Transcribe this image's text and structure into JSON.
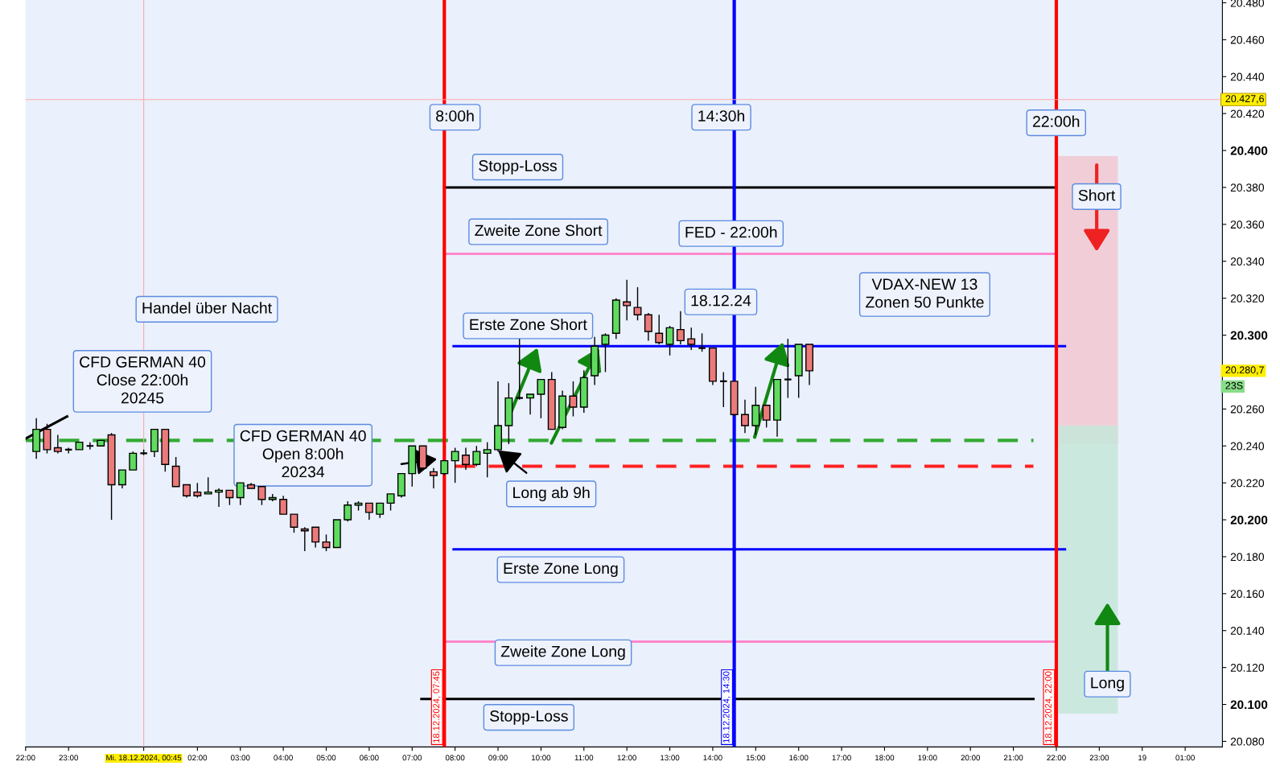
{
  "chart_data": {
    "type": "candlestick",
    "x": [
      "2024-12-17T22:15",
      "2024-12-17T22:30",
      "2024-12-17T22:45",
      "2024-12-17T23:00",
      "2024-12-17T23:15",
      "2024-12-17T23:30",
      "2024-12-17T23:45",
      "2024-12-18T00:00",
      "2024-12-18T00:15",
      "2024-12-18T00:30",
      "2024-12-18T00:45",
      "2024-12-18T01:00",
      "2024-12-18T01:15",
      "2024-12-18T01:30",
      "2024-12-18T01:45",
      "2024-12-18T02:00",
      "2024-12-18T02:15",
      "2024-12-18T02:30",
      "2024-12-18T02:45",
      "2024-12-18T03:00",
      "2024-12-18T03:15",
      "2024-12-18T03:30",
      "2024-12-18T03:45",
      "2024-12-18T04:00",
      "2024-12-18T04:15",
      "2024-12-18T04:30",
      "2024-12-18T04:45",
      "2024-12-18T05:00",
      "2024-12-18T05:15",
      "2024-12-18T05:30",
      "2024-12-18T05:45",
      "2024-12-18T06:00",
      "2024-12-18T06:15",
      "2024-12-18T06:30",
      "2024-12-18T06:45",
      "2024-12-18T07:00",
      "2024-12-18T07:15",
      "2024-12-18T07:30",
      "2024-12-18T07:45",
      "2024-12-18T08:00",
      "2024-12-18T08:15",
      "2024-12-18T08:30",
      "2024-12-18T08:45",
      "2024-12-18T09:00",
      "2024-12-18T09:15",
      "2024-12-18T09:30",
      "2024-12-18T09:45",
      "2024-12-18T10:00",
      "2024-12-18T10:15",
      "2024-12-18T10:30",
      "2024-12-18T10:45",
      "2024-12-18T11:00",
      "2024-12-18T11:15",
      "2024-12-18T11:30",
      "2024-12-18T11:45",
      "2024-12-18T12:00",
      "2024-12-18T12:15",
      "2024-12-18T12:30",
      "2024-12-18T12:45",
      "2024-12-18T13:00",
      "2024-12-18T13:15",
      "2024-12-18T13:30",
      "2024-12-18T13:45",
      "2024-12-18T14:00",
      "2024-12-18T14:15",
      "2024-12-18T14:30",
      "2024-12-18T14:45",
      "2024-12-18T15:00",
      "2024-12-18T15:15",
      "2024-12-18T15:30",
      "2024-12-18T15:45",
      "2024-12-18T16:00",
      "2024-12-18T16:15"
    ],
    "ohlc": [
      [
        20237,
        20255,
        20233,
        20249
      ],
      [
        20249,
        20252,
        20236,
        20238
      ],
      [
        20239,
        20246,
        20236,
        20237
      ],
      [
        20238,
        20239,
        20236,
        20238
      ],
      [
        20238,
        20242,
        20238,
        20242
      ],
      [
        20240,
        20242,
        20238,
        20240
      ],
      [
        20240,
        20243,
        20240,
        20243
      ],
      [
        20246,
        20247,
        20200,
        20219
      ],
      [
        20219,
        20227,
        20217,
        20227
      ],
      [
        20227,
        20237,
        20227,
        20236
      ],
      [
        20236,
        20238,
        20235,
        20236
      ],
      [
        20237,
        20249,
        20234,
        20249
      ],
      [
        20249,
        20249,
        20226,
        20230
      ],
      [
        20229,
        20234,
        20218,
        20218
      ],
      [
        20219,
        20219,
        20212,
        20213
      ],
      [
        20215,
        20220,
        20212,
        20213
      ],
      [
        20214,
        20223,
        20214,
        20215
      ],
      [
        20215,
        20217,
        20207,
        20216
      ],
      [
        20216,
        20216,
        20208,
        20212
      ],
      [
        20212,
        20220,
        20208,
        20220
      ],
      [
        20219,
        20220,
        20217,
        20217
      ],
      [
        20218,
        20218,
        20208,
        20211
      ],
      [
        20211,
        20214,
        20210,
        20212
      ],
      [
        20211,
        20213,
        20203,
        20203
      ],
      [
        20203,
        20203,
        20193,
        20196
      ],
      [
        20195,
        20196,
        20183,
        20194
      ],
      [
        20196,
        20196,
        20185,
        20188
      ],
      [
        20188,
        20192,
        20183,
        20185
      ],
      [
        20185,
        20200,
        20185,
        20200
      ],
      [
        20200,
        20210,
        20199,
        20208
      ],
      [
        20208,
        20210,
        20205,
        20209
      ],
      [
        20209,
        20209,
        20200,
        20204
      ],
      [
        20203,
        20209,
        20201,
        20209
      ],
      [
        20209,
        20214,
        20205,
        20214
      ],
      [
        20213,
        20225,
        20212,
        20225
      ],
      [
        20225,
        20240,
        20218,
        20240
      ],
      [
        20240,
        20240,
        20227,
        20228
      ],
      [
        20226,
        20228,
        20217,
        20224
      ],
      [
        20225,
        20232,
        20224,
        20232
      ],
      [
        20232,
        20239,
        20220,
        20237
      ],
      [
        20235,
        20239,
        20227,
        20230
      ],
      [
        20230,
        20240,
        20229,
        20237
      ],
      [
        20236,
        20242,
        20223,
        20238
      ],
      [
        20238,
        20275,
        20237,
        20251
      ],
      [
        20251,
        20274,
        20241,
        20266
      ],
      [
        20266,
        20298,
        20265,
        20266
      ],
      [
        20266,
        20268,
        20257,
        20268
      ],
      [
        20268,
        20276,
        20255,
        20276
      ],
      [
        20276,
        20280,
        20249,
        20249
      ],
      [
        20250,
        20270,
        20249,
        20267
      ],
      [
        20267,
        20275,
        20256,
        20261
      ],
      [
        20261,
        20281,
        20258,
        20277
      ],
      [
        20278,
        20299,
        20273,
        20294
      ],
      [
        20295,
        20301,
        20280,
        20300
      ],
      [
        20301,
        20320,
        20298,
        20319
      ],
      [
        20318,
        20330,
        20308,
        20316
      ],
      [
        20315,
        20326,
        20308,
        20311
      ],
      [
        20311,
        20312,
        20297,
        20302
      ],
      [
        20301,
        20311,
        20295,
        20296
      ],
      [
        20295,
        20305,
        20289,
        20304
      ],
      [
        20303,
        20313,
        20295,
        20297
      ],
      [
        20298,
        20304,
        20292,
        20295
      ],
      [
        20293,
        20301,
        20291,
        20293
      ],
      [
        20293,
        20293,
        20273,
        20275
      ],
      [
        20275,
        20280,
        20261,
        20275
      ],
      [
        20275,
        20275,
        20256,
        20257
      ],
      [
        20257,
        20265,
        20247,
        20251
      ],
      [
        20251,
        20272,
        20246,
        20262
      ],
      [
        20262,
        20262,
        20250,
        20254
      ],
      [
        20254,
        20276,
        20245,
        20276
      ],
      [
        20276,
        20298,
        20266,
        20276
      ],
      [
        20278,
        20295,
        20266,
        20295
      ],
      [
        20295,
        20295,
        20273,
        20280.7
      ]
    ],
    "series": [
      {
        "type": "bar",
        "color": "#f2c8d0",
        "x": [
          "2024-12-18T22:43"
        ],
        "base": [
          20241
        ],
        "values": [
          156
        ]
      },
      {
        "type": "bar",
        "color": "#c4e6d8",
        "x": [
          "2024-12-18T22:43"
        ],
        "base": [
          20095
        ],
        "values": [
          156
        ]
      },
      {
        "type": "line",
        "color": "#000000",
        "x": [
          "2024-12-18T07:45",
          "2024-12-18T22:00"
        ],
        "values": [
          20380,
          20380
        ]
      },
      {
        "type": "line",
        "color": "#ff88cc",
        "x": [
          "2024-12-18T07:45",
          "2024-12-18T22:00"
        ],
        "values": [
          20344,
          20344
        ]
      },
      {
        "type": "line",
        "color": "#0000ff",
        "x": [
          "2024-12-18T07:58",
          "2024-12-18T22:12"
        ],
        "values": [
          20294,
          20294
        ]
      },
      {
        "type": "line",
        "color": "#33aa33",
        "x": [
          "2024-12-17T22:00",
          "2024-12-18T21:28"
        ],
        "values": [
          20243,
          20243
        ],
        "line_style": "dashed"
      },
      {
        "type": "line",
        "color": "#ff2222",
        "x": [
          "2024-12-18T08:00",
          "2024-12-18T21:28"
        ],
        "values": [
          20229,
          20229
        ],
        "line_style": "dashed"
      },
      {
        "type": "line",
        "color": "#0000ff",
        "x": [
          "2024-12-18T07:58",
          "2024-12-18T22:12"
        ],
        "values": [
          20184,
          20184
        ]
      },
      {
        "type": "line",
        "color": "#ff88cc",
        "x": [
          "2024-12-18T07:45",
          "2024-12-18T22:00"
        ],
        "values": [
          20134,
          20134
        ]
      },
      {
        "type": "line",
        "color": "#000000",
        "x": [
          "2024-12-18T07:13",
          "2024-12-18T21:28"
        ],
        "values": [
          20103,
          20103
        ]
      },
      {
        "type": "line",
        "color": "#000000",
        "x": [
          "2024-12-17T22:00",
          "2024-12-17T22:58"
        ],
        "values": [
          20244,
          20256
        ]
      }
    ],
    "ref_lines": [
      {
        "axis": "x",
        "value": "2024-12-18T07:45",
        "label": "18.12.2024, 07:45",
        "color": "#ff0000"
      },
      {
        "axis": "x",
        "value": "2024-12-18T14:30",
        "label": "18.12.2024, 14:30",
        "color": "#0000ff"
      },
      {
        "axis": "x",
        "value": "2024-12-18T22:00",
        "label": "18.12.2024, 22:00",
        "color": "#ff0000"
      },
      {
        "axis": "x",
        "value": "2024-12-18T00:45",
        "color": "#ffaaaa"
      },
      {
        "axis": "y",
        "value": 20427.6,
        "label": "20.427,6",
        "color": "#ffaaaa"
      }
    ],
    "annotations": [
      "8:00h",
      "14:30h",
      "22:00h",
      "Stopp-Loss",
      "Zweite Zone Short",
      "FED - 22:00h",
      "Handel über Nacht",
      "18.12.24",
      "VDAX-NEW 13\nZonen 50 Punkte",
      "Erste Zone Short",
      "CFD GERMAN 40\nClose 22:00h\n20245",
      "CFD GERMAN 40\nOpen 8:00h\n20234",
      "Long ab 9h",
      "Erste Zone Long",
      "Zweite Zone Long",
      "Stopp-Loss",
      "Short",
      "Long",
      "20.280,7",
      "23S"
    ],
    "xlim": [
      "2024-12-17T22:00",
      "2024-12-19T01:52"
    ],
    "xticks": [
      {
        "value": "2024-12-17T22:00",
        "label": "22:00"
      },
      {
        "value": "2024-12-17T23:00",
        "label": "23:00"
      },
      {
        "value": "2024-12-18T00:45",
        "label": "Mi. 18.12.2024, 00:45"
      },
      {
        "value": "2024-12-18T02:00",
        "label": "02:00"
      },
      {
        "value": "2024-12-18T03:00",
        "label": "03:00"
      },
      {
        "value": "2024-12-18T04:00",
        "label": "04:00"
      },
      {
        "value": "2024-12-18T05:00",
        "label": "05:00"
      },
      {
        "value": "2024-12-18T06:00",
        "label": "06:00"
      },
      {
        "value": "2024-12-18T07:00",
        "label": "07:00"
      },
      {
        "value": "2024-12-18T08:00",
        "label": "08:00"
      },
      {
        "value": "2024-12-18T09:00",
        "label": "09:00"
      },
      {
        "value": "2024-12-18T10:00",
        "label": "10:00"
      },
      {
        "value": "2024-12-18T11:00",
        "label": "11:00"
      },
      {
        "value": "2024-12-18T12:00",
        "label": "12:00"
      },
      {
        "value": "2024-12-18T13:00",
        "label": "13:00"
      },
      {
        "value": "2024-12-18T14:00",
        "label": "14:00"
      },
      {
        "value": "2024-12-18T15:00",
        "label": "15:00"
      },
      {
        "value": "2024-12-18T16:00",
        "label": "16:00"
      },
      {
        "value": "2024-12-18T17:00",
        "label": "17:00"
      },
      {
        "value": "2024-12-18T18:00",
        "label": "18:00"
      },
      {
        "value": "2024-12-18T19:00",
        "label": "19:00"
      },
      {
        "value": "2024-12-18T20:00",
        "label": "20:00"
      },
      {
        "value": "2024-12-18T21:00",
        "label": "21:00"
      },
      {
        "value": "2024-12-18T22:00",
        "label": "22:00"
      },
      {
        "value": "2024-12-18T23:00",
        "label": "23:00"
      },
      {
        "value": "2024-12-19T00:00",
        "label": "19"
      },
      {
        "value": "2024-12-19T01:00",
        "label": "01:00"
      }
    ],
    "ylim": [
      20077,
      20481.5
    ],
    "yticks": [
      {
        "value": 20080,
        "label": "20.080"
      },
      {
        "value": 20100,
        "label": "20.100"
      },
      {
        "value": 20120,
        "label": "20.120"
      },
      {
        "value": 20140,
        "label": "20.140"
      },
      {
        "value": 20160,
        "label": "20.160"
      },
      {
        "value": 20180,
        "label": "20.180"
      },
      {
        "value": 20200,
        "label": "20.200"
      },
      {
        "value": 20220,
        "label": "20.220"
      },
      {
        "value": 20240,
        "label": "20.240"
      },
      {
        "value": 20260,
        "label": "20.260"
      },
      {
        "value": 20300,
        "label": "20.300"
      },
      {
        "value": 20320,
        "label": "20.320"
      },
      {
        "value": 20340,
        "label": "20.340"
      },
      {
        "value": 20360,
        "label": "20.360"
      },
      {
        "value": 20380,
        "label": "20.380"
      },
      {
        "value": 20400,
        "label": "20.400"
      },
      {
        "value": 20420,
        "label": "20.420"
      },
      {
        "value": 20440,
        "label": "20.440"
      },
      {
        "value": 20460,
        "label": "20.460"
      },
      {
        "value": 20480,
        "label": "20.480"
      }
    ],
    "grid": false,
    "legend": false
  }
}
